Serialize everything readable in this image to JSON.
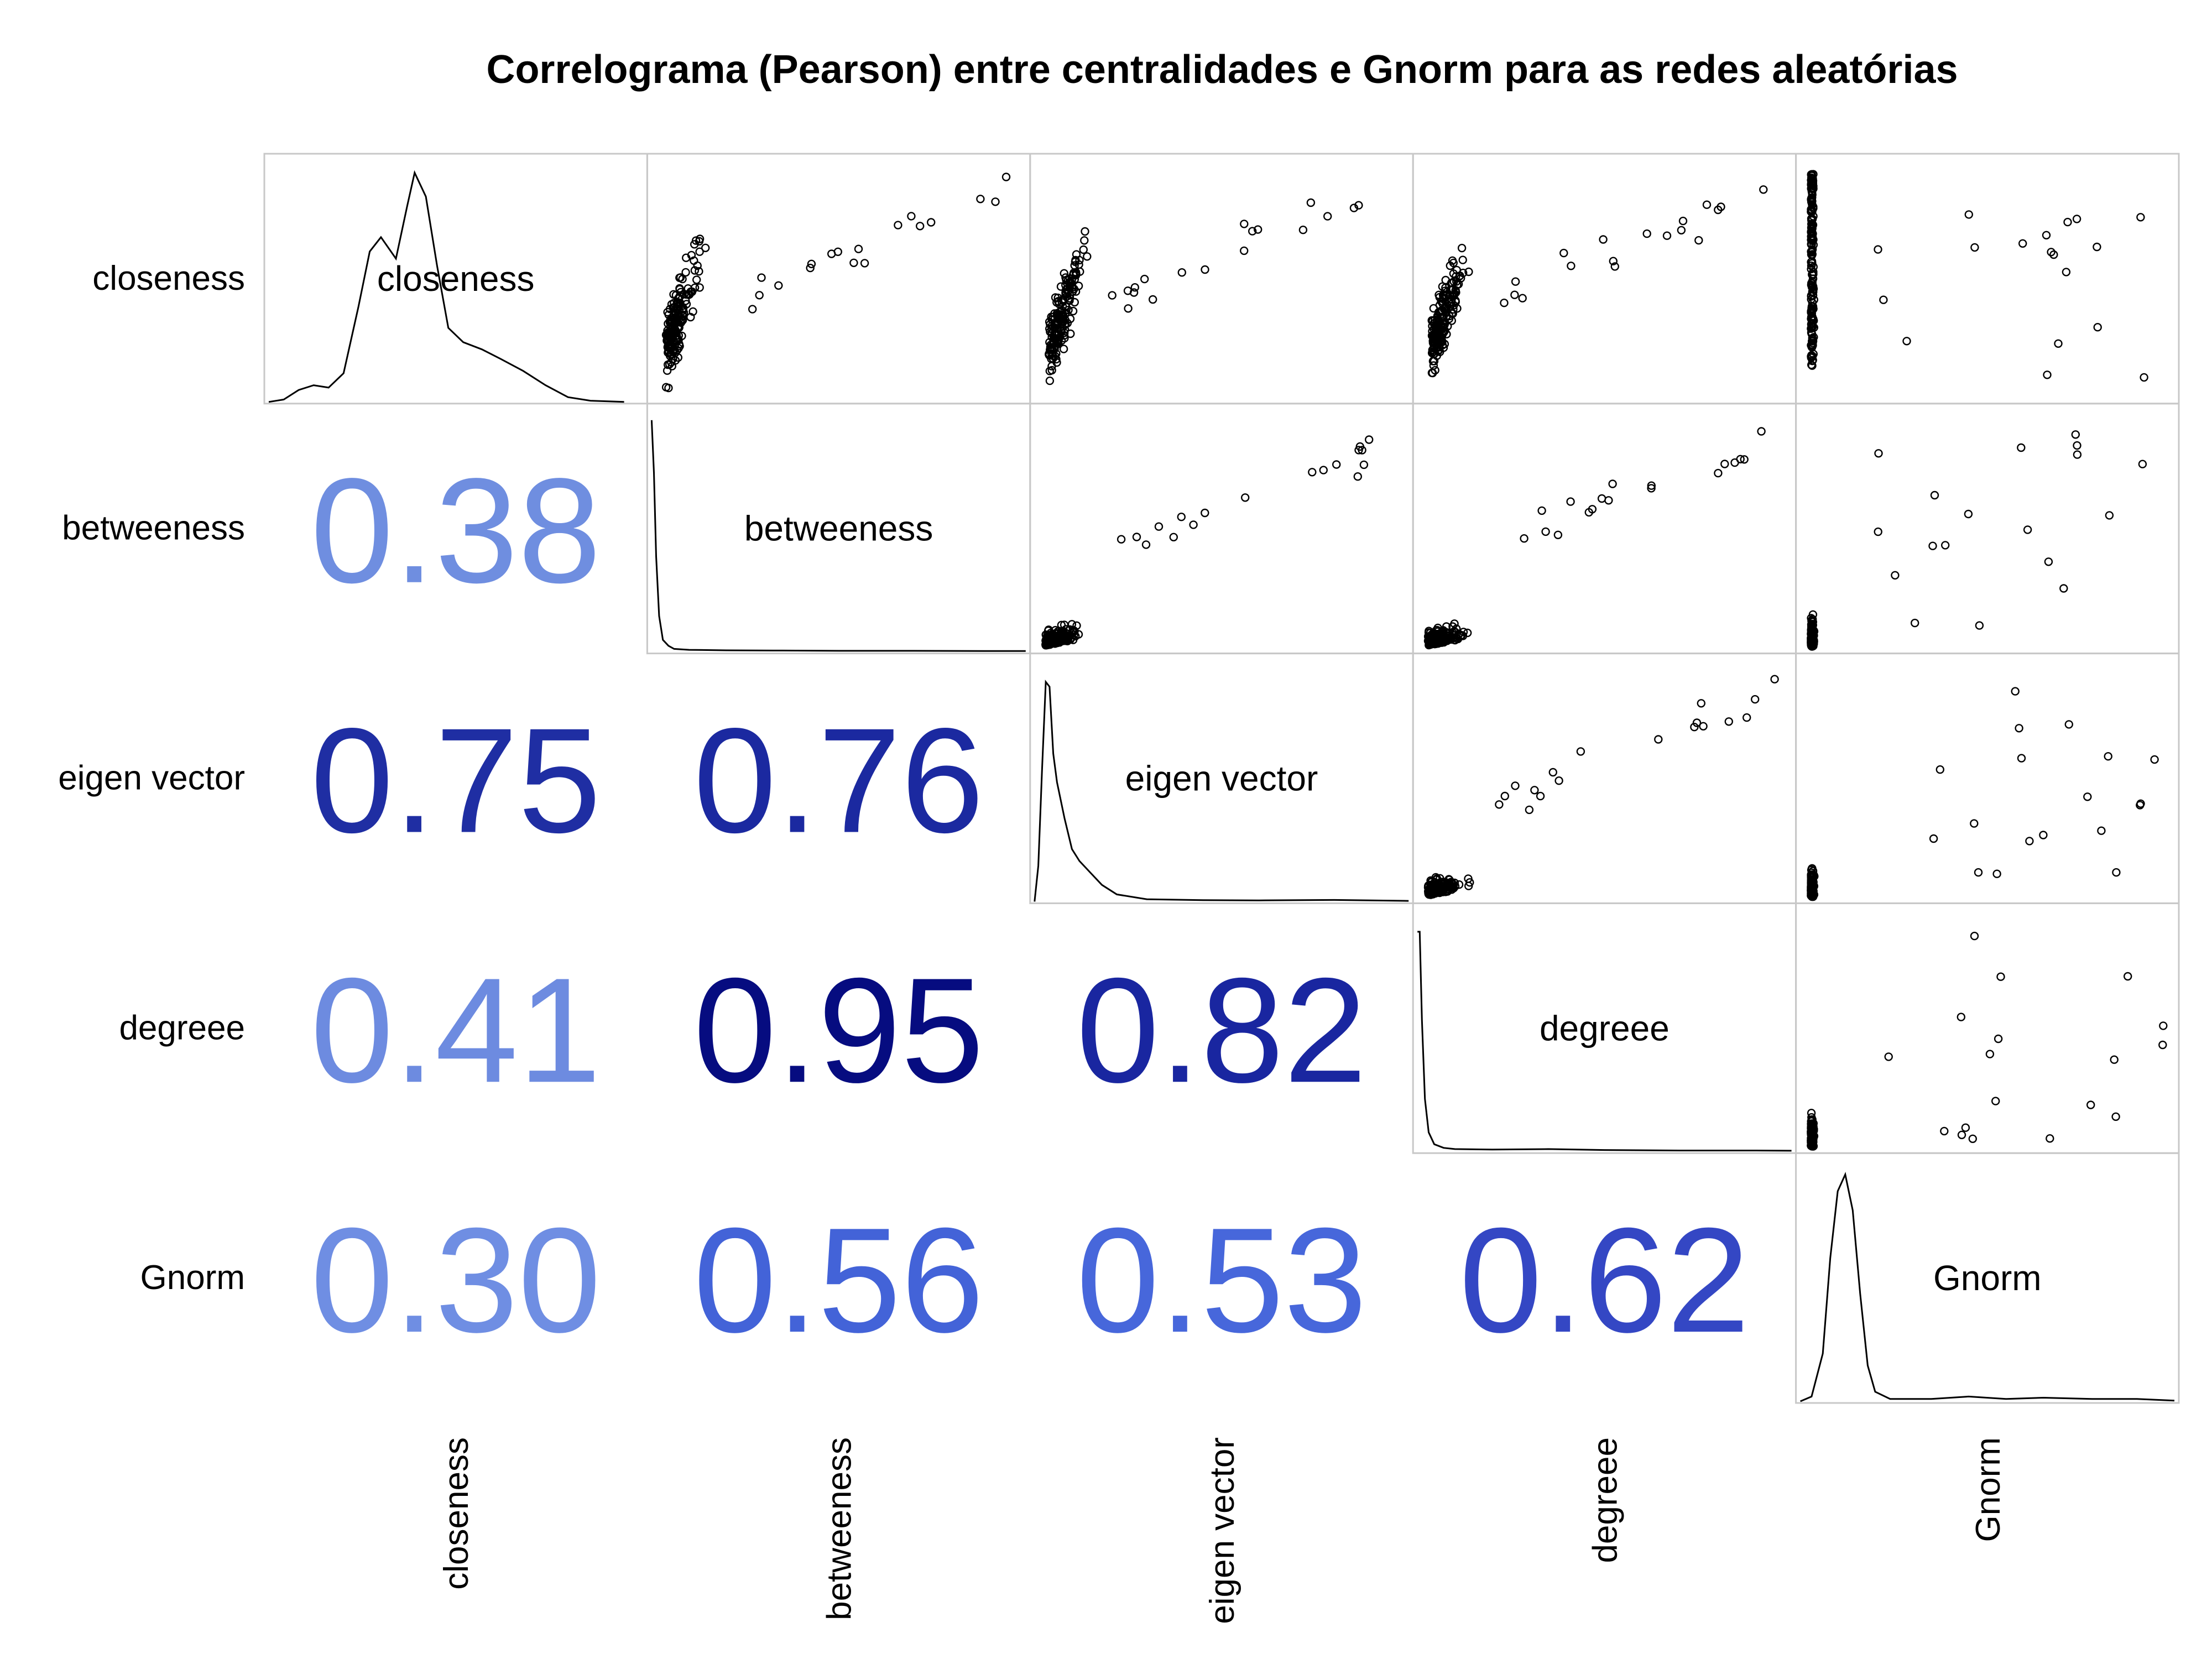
{
  "title": "Correlograma (Pearson) entre centralidades e Gnorm para as redes aleatórias",
  "chart_data": {
    "type": "scatter-matrix",
    "method": "Pearson",
    "variables": [
      "closeness",
      "betweeness",
      "eigen vector",
      "degreee",
      "Gnorm"
    ],
    "correlations": [
      {
        "row": "betweeness",
        "col": "closeness",
        "text": "0.38",
        "value": 0.38,
        "color": "#6f8ee0"
      },
      {
        "row": "eigen vector",
        "col": "closeness",
        "text": "0.75",
        "value": 0.75,
        "color": "#1f2ea3"
      },
      {
        "row": "eigen vector",
        "col": "betweeness",
        "text": "0.76",
        "value": 0.76,
        "color": "#1b29a0"
      },
      {
        "row": "degreee",
        "col": "closeness",
        "text": "0.41",
        "value": 0.41,
        "color": "#6d8be0"
      },
      {
        "row": "degreee",
        "col": "betweeness",
        "text": "0.95",
        "value": 0.95,
        "color": "#060c80"
      },
      {
        "row": "degreee",
        "col": "eigen vector",
        "text": "0.82",
        "value": 0.82,
        "color": "#1926a0"
      },
      {
        "row": "Gnorm",
        "col": "closeness",
        "text": "0.30",
        "value": 0.3,
        "color": "#6f8ee3"
      },
      {
        "row": "Gnorm",
        "col": "betweeness",
        "text": "0.56",
        "value": 0.56,
        "color": "#4363d8"
      },
      {
        "row": "Gnorm",
        "col": "eigen vector",
        "text": "0.53",
        "value": 0.53,
        "color": "#4767db"
      },
      {
        "row": "Gnorm",
        "col": "degreee",
        "text": "0.62",
        "value": 0.62,
        "color": "#3447c4"
      }
    ],
    "densities": {
      "closeness": [
        [
          0,
          0
        ],
        [
          0.04,
          0.01
        ],
        [
          0.08,
          0.05
        ],
        [
          0.12,
          0.07
        ],
        [
          0.16,
          0.06
        ],
        [
          0.2,
          0.12
        ],
        [
          0.24,
          0.4
        ],
        [
          0.27,
          0.63
        ],
        [
          0.3,
          0.69
        ],
        [
          0.34,
          0.6
        ],
        [
          0.37,
          0.82
        ],
        [
          0.39,
          0.96
        ],
        [
          0.42,
          0.86
        ],
        [
          0.45,
          0.57
        ],
        [
          0.48,
          0.31
        ],
        [
          0.52,
          0.25
        ],
        [
          0.57,
          0.22
        ],
        [
          0.62,
          0.18
        ],
        [
          0.68,
          0.13
        ],
        [
          0.74,
          0.07
        ],
        [
          0.8,
          0.02
        ],
        [
          0.86,
          0.005
        ],
        [
          0.95,
          0.0
        ]
      ],
      "betweeness": [
        [
          0,
          0.97
        ],
        [
          0.006,
          0.75
        ],
        [
          0.012,
          0.4
        ],
        [
          0.02,
          0.15
        ],
        [
          0.03,
          0.05
        ],
        [
          0.045,
          0.025
        ],
        [
          0.06,
          0.012
        ],
        [
          0.1,
          0.008
        ],
        [
          0.2,
          0.006
        ],
        [
          0.35,
          0.005
        ],
        [
          0.5,
          0.004
        ],
        [
          0.7,
          0.004
        ],
        [
          0.9,
          0.003
        ],
        [
          1.0,
          0.003
        ]
      ],
      "eigen vector": [
        [
          0,
          0
        ],
        [
          0.01,
          0.15
        ],
        [
          0.02,
          0.55
        ],
        [
          0.03,
          0.92
        ],
        [
          0.04,
          0.9
        ],
        [
          0.05,
          0.62
        ],
        [
          0.06,
          0.5
        ],
        [
          0.08,
          0.35
        ],
        [
          0.1,
          0.22
        ],
        [
          0.12,
          0.17
        ],
        [
          0.15,
          0.12
        ],
        [
          0.18,
          0.07
        ],
        [
          0.22,
          0.03
        ],
        [
          0.3,
          0.01
        ],
        [
          0.45,
          0.006
        ],
        [
          0.6,
          0.005
        ],
        [
          0.8,
          0.007
        ],
        [
          1.0,
          0.003
        ]
      ],
      "degreee": [
        [
          0,
          0.92
        ],
        [
          0.006,
          0.92
        ],
        [
          0.012,
          0.55
        ],
        [
          0.02,
          0.22
        ],
        [
          0.03,
          0.08
        ],
        [
          0.045,
          0.03
        ],
        [
          0.07,
          0.015
        ],
        [
          0.1,
          0.01
        ],
        [
          0.2,
          0.008
        ],
        [
          0.35,
          0.01
        ],
        [
          0.5,
          0.006
        ],
        [
          0.7,
          0.004
        ],
        [
          0.9,
          0.004
        ],
        [
          1.0,
          0.003
        ]
      ],
      "Gnorm": [
        [
          0,
          0
        ],
        [
          0.03,
          0.02
        ],
        [
          0.06,
          0.2
        ],
        [
          0.08,
          0.6
        ],
        [
          0.1,
          0.88
        ],
        [
          0.12,
          0.95
        ],
        [
          0.14,
          0.8
        ],
        [
          0.16,
          0.45
        ],
        [
          0.18,
          0.15
        ],
        [
          0.2,
          0.04
        ],
        [
          0.24,
          0.01
        ],
        [
          0.35,
          0.01
        ],
        [
          0.45,
          0.02
        ],
        [
          0.55,
          0.01
        ],
        [
          0.65,
          0.015
        ],
        [
          0.78,
          0.01
        ],
        [
          0.9,
          0.01
        ],
        [
          1.0,
          0.003
        ]
      ]
    }
  }
}
